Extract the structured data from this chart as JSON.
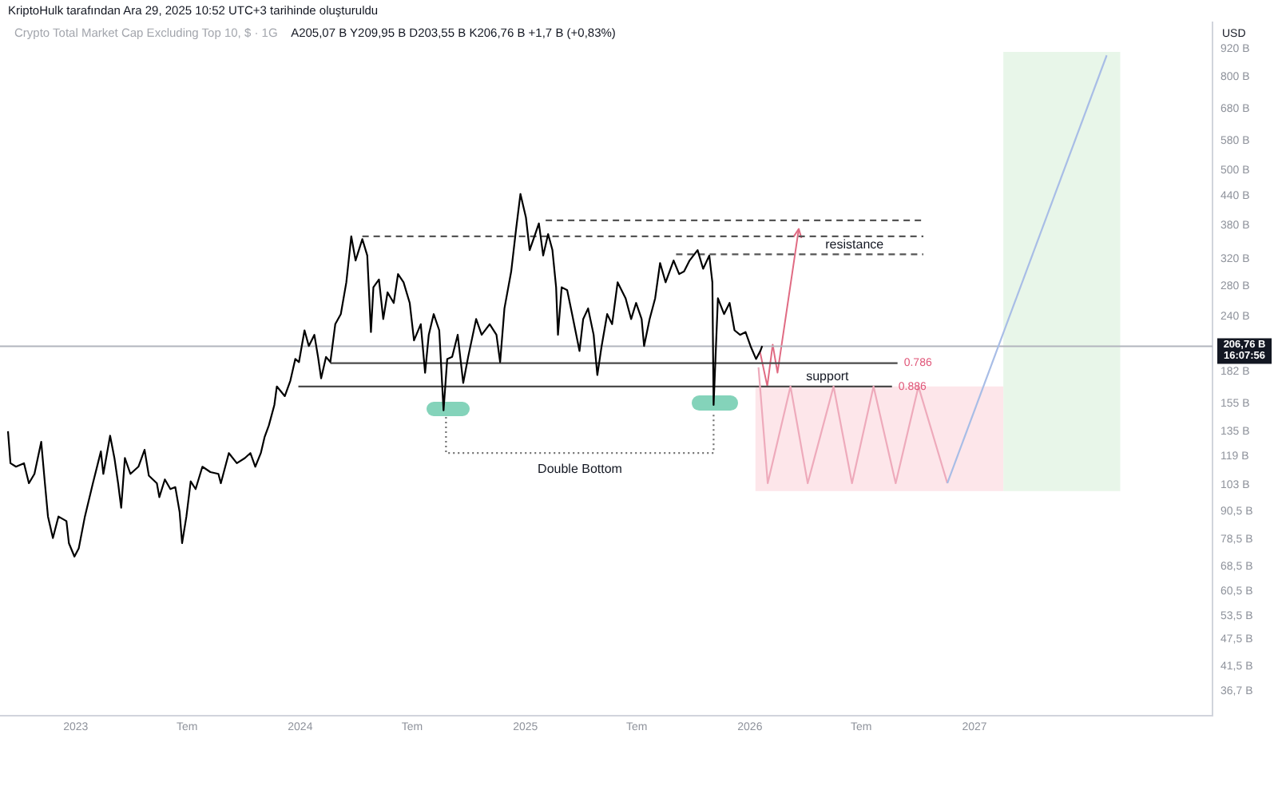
{
  "chart_data": {
    "type": "line",
    "title": "Crypto Total Market Cap Excluding Top 10, $ · 1G",
    "subtitle": "A205,07 B Y209,95 B D203,55 B K206,76 B +1,7 B (+0,83%)",
    "ylabel": "USD",
    "annotations": [
      "KriptoHulk tarafından Ara 29, 2025 10:52 UTC+3 tarihinde oluşturuldu",
      "16:07:56",
      "Double Bottom",
      {
        "text": "resistance",
        "x": "2026-06-20",
        "y": 328
      },
      {
        "text": "support",
        "x": "2026-05-07",
        "y": 169
      }
    ],
    "xlim": [
      "2022-08-31",
      "2028-01-23"
    ],
    "xticks": [
      "2023",
      {
        "value": "2023-07",
        "label": "Tem"
      },
      "2024",
      {
        "value": "2024-07",
        "label": "Tem"
      },
      "2025",
      {
        "value": "2025-07",
        "label": "Tem"
      },
      "2026",
      {
        "value": "2026-07",
        "label": "Tem"
      },
      "2027"
    ],
    "ylim": [
      32.4,
      1050
    ],
    "log": "y",
    "yticks": [
      {
        "value": 920,
        "label": "920 B"
      },
      {
        "value": 800,
        "label": "800 B"
      },
      {
        "value": 680,
        "label": "680 B"
      },
      {
        "value": 580,
        "label": "580 B"
      },
      {
        "value": 500,
        "label": "500 B"
      },
      {
        "value": 440,
        "label": "440 B"
      },
      {
        "value": 380,
        "label": "380 B"
      },
      {
        "value": 320,
        "label": "320 B"
      },
      {
        "value": 280,
        "label": "280 B"
      },
      {
        "value": 240,
        "label": "240 B"
      },
      {
        "value": 182,
        "label": "182 B"
      },
      {
        "value": 155,
        "label": "155 B"
      },
      {
        "value": 135,
        "label": "135 B"
      },
      {
        "value": 119,
        "label": "119 B"
      },
      {
        "value": 103,
        "label": "103 B"
      },
      {
        "value": 90.5,
        "label": "90,5 B"
      },
      {
        "value": 78.5,
        "label": "78,5 B"
      },
      {
        "value": 68.5,
        "label": "68,5 B"
      },
      {
        "value": 60.5,
        "label": "60,5 B"
      },
      {
        "value": 53.5,
        "label": "53,5 B"
      },
      {
        "value": 47.5,
        "label": "47,5 B"
      },
      {
        "value": 41.5,
        "label": "41,5 B"
      },
      {
        "value": 36.7,
        "label": "36,7 B"
      }
    ],
    "ref_lines": [
      {
        "axis": "y",
        "value": 206.76,
        "label": "206,76 B",
        "color": "#b2b5be"
      }
    ],
    "series": [
      {
        "x": [
          "2026-01-10",
          "2027-02-17"
        ],
        "values": [
          null,
          null
        ],
        "lower": [
          100,
          100
        ],
        "upper": [
          169,
          169
        ],
        "color": "#fde6ea"
      },
      {
        "x": [
          "2027-02-17",
          "2027-08-26"
        ],
        "values": [
          null,
          null
        ],
        "lower": [
          100,
          100
        ],
        "upper": [
          905,
          905
        ],
        "color": "#e8f6e9"
      },
      {
        "name": "0.786",
        "x": [
          "2024-02-19",
          "2026-08-29"
        ],
        "values": [
          190,
          190
        ],
        "color": "#4a4a4a"
      },
      {
        "name": "0.886",
        "x": [
          "2023-12-29",
          "2026-08-20"
        ],
        "values": [
          169,
          169
        ],
        "color": "#4a4a4a"
      },
      {
        "x": [
          "2025-02-03",
          "2026-10-07"
        ],
        "values": [
          389,
          389
        ],
        "color": "#555555",
        "line_style": "dashed"
      },
      {
        "x": [
          "2024-04-11",
          "2026-10-10"
        ],
        "values": [
          359,
          359
        ],
        "color": "#555555",
        "line_style": "dashed"
      },
      {
        "x": [
          "2025-09-03",
          "2026-10-10"
        ],
        "values": [
          328,
          328
        ],
        "color": "#555555",
        "line_style": "dashed"
      },
      {
        "x": [
          "2024-08-25",
          "2024-08-25",
          "2025-11-03",
          "2025-11-03"
        ],
        "values": [
          145,
          121,
          121,
          149
        ],
        "color": "#707070",
        "line_style": "dotted"
      },
      {
        "x": [
          "2026-01-15",
          "2026-01-30",
          "2026-03-08",
          "2026-04-05",
          "2026-05-17",
          "2026-06-16",
          "2026-07-21",
          "2026-08-26",
          "2026-10-02",
          "2026-11-18"
        ],
        "values": [
          186,
          104,
          169,
          104,
          169,
          104,
          169,
          104,
          169,
          104
        ],
        "color": "#eeaabb"
      },
      {
        "x": [
          "2026-11-18",
          "2027-08-04"
        ],
        "values": [
          104,
          890
        ],
        "color": "#a8bde6"
      },
      {
        "color": "#000000",
        "x": [
          "2022-09-13",
          "2022-09-17",
          "2022-09-26",
          "2022-10-09",
          "2022-10-17",
          "2022-10-26",
          "2022-11-06",
          "2022-11-12",
          "2022-11-17",
          "2022-11-25",
          "2022-12-04",
          "2022-12-17",
          "2022-12-21",
          "2022-12-30",
          "2023-01-06",
          "2023-01-16",
          "2023-01-29",
          "2023-02-11",
          "2023-02-15",
          "2023-02-26",
          "2023-03-05",
          "2023-03-11",
          "2023-03-16",
          "2023-03-22",
          "2023-03-31",
          "2023-04-13",
          "2023-04-23",
          "2023-04-30",
          "2023-05-13",
          "2023-05-17",
          "2023-05-26",
          "2023-06-04",
          "2023-06-12",
          "2023-06-19",
          "2023-06-23",
          "2023-06-30",
          "2023-07-07",
          "2023-07-15",
          "2023-07-26",
          "2023-08-08",
          "2023-08-21",
          "2023-08-25",
          "2023-09-07",
          "2023-09-20",
          "2023-10-03",
          "2023-10-12",
          "2023-10-20",
          "2023-10-29",
          "2023-11-04",
          "2023-11-11",
          "2023-11-20",
          "2023-11-24",
          "2023-12-07",
          "2023-12-16",
          "2023-12-24",
          "2023-12-30",
          "2024-01-08",
          "2024-01-15",
          "2024-01-24",
          "2024-01-30",
          "2024-02-04",
          "2024-02-12",
          "2024-02-19",
          "2024-02-27",
          "2024-03-07",
          "2024-03-16",
          "2024-03-24",
          "2024-03-31",
          "2024-04-11",
          "2024-04-19",
          "2024-04-25",
          "2024-04-29",
          "2024-05-08",
          "2024-05-15",
          "2024-05-22",
          "2024-06-01",
          "2024-06-08",
          "2024-06-17",
          "2024-06-27",
          "2024-07-04",
          "2024-07-15",
          "2024-07-22",
          "2024-07-28",
          "2024-08-05",
          "2024-08-14",
          "2024-08-21",
          "2024-08-27",
          "2024-09-04",
          "2024-09-13",
          "2024-09-22",
          "2024-09-30",
          "2024-10-13",
          "2024-10-22",
          "2024-11-04",
          "2024-11-15",
          "2024-11-21",
          "2024-11-28",
          "2024-12-09",
          "2024-12-17",
          "2024-12-24",
          "2025-01-02",
          "2025-01-08",
          "2025-01-17",
          "2025-01-23",
          "2025-01-30",
          "2025-02-07",
          "2025-02-14",
          "2025-02-20",
          "2025-02-23",
          "2025-03-01",
          "2025-03-10",
          "2025-03-18",
          "2025-03-30",
          "2025-04-05",
          "2025-04-13",
          "2025-04-22",
          "2025-04-28",
          "2025-05-05",
          "2025-05-14",
          "2025-05-22",
          "2025-05-31",
          "2025-06-13",
          "2025-06-22",
          "2025-06-30",
          "2025-07-09",
          "2025-07-13",
          "2025-07-22",
          "2025-07-31",
          "2025-08-08",
          "2025-08-17",
          "2025-08-30",
          "2025-09-08",
          "2025-09-16",
          "2025-09-25",
          "2025-10-08",
          "2025-10-17",
          "2025-10-27",
          "2025-11-01",
          "2025-11-03",
          "2025-11-10",
          "2025-11-20",
          "2025-11-29",
          "2025-12-07",
          "2025-12-16",
          "2025-12-25",
          "2026-01-02",
          "2026-01-11",
          "2026-01-18",
          "2026-01-21"
        ],
        "values": [
          135,
          115,
          113,
          115,
          104,
          109,
          128,
          104,
          88,
          79,
          88,
          86,
          77,
          72,
          75,
          88,
          104,
          122,
          109,
          132,
          118,
          104,
          92,
          118,
          109,
          113,
          123,
          108,
          104,
          97,
          106,
          101,
          102,
          90,
          77,
          88,
          105,
          101,
          113,
          110,
          109,
          104,
          121,
          115,
          118,
          121,
          113,
          121,
          131,
          139,
          154,
          169,
          161,
          174,
          194,
          191,
          224,
          207,
          219,
          196,
          176,
          196,
          191,
          231,
          243,
          285,
          359,
          318,
          354,
          326,
          222,
          278,
          289,
          237,
          271,
          257,
          297,
          285,
          257,
          213,
          231,
          181,
          219,
          243,
          224,
          150,
          194,
          196,
          219,
          172,
          196,
          237,
          219,
          231,
          219,
          191,
          250,
          301,
          373,
          444,
          394,
          335,
          363,
          383,
          326,
          363,
          335,
          278,
          219,
          278,
          274,
          243,
          202,
          237,
          250,
          219,
          179,
          207,
          243,
          231,
          285,
          263,
          237,
          257,
          237,
          207,
          237,
          263,
          314,
          285,
          318,
          297,
          301,
          318,
          335,
          305,
          326,
          285,
          154,
          263,
          243,
          257,
          224,
          219,
          222,
          207,
          194,
          202,
          207
        ]
      }
    ]
  }
}
